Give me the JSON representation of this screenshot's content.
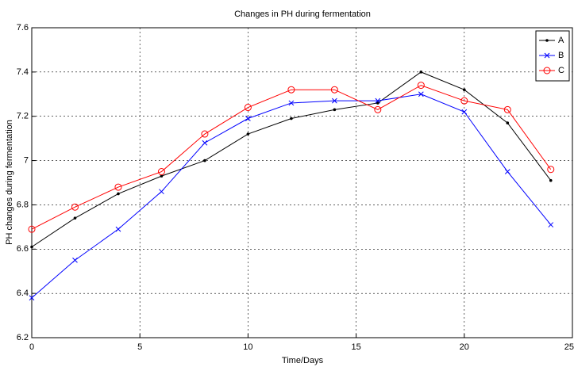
{
  "chart_data": {
    "type": "line",
    "title": "Changes in PH during fermentation",
    "xlabel": "Time/Days",
    "ylabel": "PH changes during fermentation",
    "x": [
      0,
      2,
      4,
      6,
      8,
      10,
      12,
      14,
      16,
      18,
      20,
      22,
      24
    ],
    "series": [
      {
        "name": "A",
        "color": "#000000",
        "marker": "dot",
        "values": [
          6.61,
          6.74,
          6.85,
          6.93,
          7.0,
          7.12,
          7.19,
          7.23,
          7.26,
          7.4,
          7.32,
          7.17,
          6.91
        ]
      },
      {
        "name": "B",
        "color": "#0000ff",
        "marker": "x",
        "values": [
          6.38,
          6.55,
          6.69,
          6.86,
          7.08,
          7.19,
          7.26,
          7.27,
          7.27,
          7.3,
          7.22,
          6.95,
          6.71
        ]
      },
      {
        "name": "C",
        "color": "#ff0000",
        "marker": "o",
        "values": [
          6.69,
          6.79,
          6.88,
          6.95,
          7.12,
          7.24,
          7.32,
          7.32,
          7.23,
          7.34,
          7.27,
          7.23,
          6.96
        ]
      }
    ],
    "xlim": [
      0,
      25
    ],
    "xticks": [
      0,
      5,
      10,
      15,
      20,
      25
    ],
    "ylim": [
      6.2,
      7.6
    ],
    "yticks": [
      6.2,
      6.4,
      6.6,
      6.8,
      7,
      7.2,
      7.4,
      7.6
    ],
    "grid": true,
    "legend": "upper right"
  }
}
